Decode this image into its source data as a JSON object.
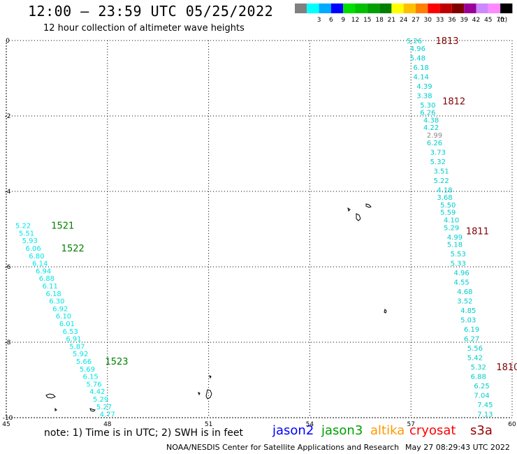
{
  "title": "12:00 – 23:59 UTC 05/25/2022",
  "subtitle": "12 hour collection of altimeter wave heights",
  "legend": {
    "unit": "(ft)",
    "bins": [
      {
        "label": "",
        "color": "#808080"
      },
      {
        "label": "3",
        "color": "#00ffff"
      },
      {
        "label": "6",
        "color": "#00aaff"
      },
      {
        "label": "9",
        "color": "#0000ff"
      },
      {
        "label": "12",
        "color": "#00dd00"
      },
      {
        "label": "15",
        "color": "#00c000"
      },
      {
        "label": "18",
        "color": "#00a000"
      },
      {
        "label": "21",
        "color": "#008000"
      },
      {
        "label": "24",
        "color": "#ffff00"
      },
      {
        "label": "27",
        "color": "#ffc000"
      },
      {
        "label": "30",
        "color": "#ff8000"
      },
      {
        "label": "33",
        "color": "#ff0000"
      },
      {
        "label": "36",
        "color": "#c00000"
      },
      {
        "label": "39",
        "color": "#800000"
      },
      {
        "label": "42",
        "color": "#990099"
      },
      {
        "label": "45",
        "color": "#cc88ff"
      },
      {
        "label": "70",
        "color": "#ff88ff"
      },
      {
        "label": "",
        "color": "#000000"
      }
    ]
  },
  "axes": {
    "x_ticks": [
      "45",
      "48",
      "51",
      "54",
      "57",
      "60"
    ],
    "x_values": [
      45,
      48,
      51,
      54,
      57,
      60
    ],
    "y_ticks": [
      "0",
      "-2",
      "-4",
      "-6",
      "-8",
      "-10"
    ],
    "y_values": [
      0,
      -2,
      -4,
      -6,
      -8,
      -10
    ],
    "xlim": [
      45,
      60
    ],
    "ylim": [
      -10,
      0
    ],
    "grid": true
  },
  "tracks": [
    {
      "satellite": "jason3",
      "color": "#00e5e5",
      "label_color": "#008000",
      "points": [
        {
          "lon": 45.5,
          "lat": -4.9,
          "v": "5.22"
        },
        {
          "lon": 45.6,
          "lat": -5.1,
          "v": "5.51"
        },
        {
          "lon": 45.7,
          "lat": -5.3,
          "v": "5.93"
        },
        {
          "lon": 45.8,
          "lat": -5.5,
          "v": "6.06"
        },
        {
          "lon": 45.9,
          "lat": -5.7,
          "v": "6.80"
        },
        {
          "lon": 46.0,
          "lat": -5.9,
          "v": "6.14"
        },
        {
          "lon": 46.1,
          "lat": -6.1,
          "v": "6.94"
        },
        {
          "lon": 46.2,
          "lat": -6.3,
          "v": "6.88"
        },
        {
          "lon": 46.3,
          "lat": -6.5,
          "v": "6.11"
        },
        {
          "lon": 46.4,
          "lat": -6.7,
          "v": "6.18"
        },
        {
          "lon": 46.5,
          "lat": -6.9,
          "v": "6.30"
        },
        {
          "lon": 46.6,
          "lat": -7.1,
          "v": "6.92"
        },
        {
          "lon": 46.7,
          "lat": -7.3,
          "v": "6.10"
        },
        {
          "lon": 46.8,
          "lat": -7.5,
          "v": "6.01"
        },
        {
          "lon": 46.9,
          "lat": -7.7,
          "v": "6.53"
        },
        {
          "lon": 47.0,
          "lat": -7.9,
          "v": "6.91"
        },
        {
          "lon": 47.1,
          "lat": -8.1,
          "v": "5.87"
        },
        {
          "lon": 47.2,
          "lat": -8.3,
          "v": "5.92"
        },
        {
          "lon": 47.3,
          "lat": -8.5,
          "v": "5.66"
        },
        {
          "lon": 47.4,
          "lat": -8.7,
          "v": "5.69"
        },
        {
          "lon": 47.5,
          "lat": -8.9,
          "v": "6.15"
        },
        {
          "lon": 47.6,
          "lat": -9.1,
          "v": "5.76"
        },
        {
          "lon": 47.7,
          "lat": -9.3,
          "v": "4.42"
        },
        {
          "lon": 47.8,
          "lat": -9.5,
          "v": "5.29"
        },
        {
          "lon": 47.9,
          "lat": -9.7,
          "v": "5.27"
        },
        {
          "lon": 48.0,
          "lat": -9.9,
          "v": "4.77"
        }
      ],
      "time_labels": [
        {
          "lon": 46.3,
          "lat": -4.9,
          "text": "1521"
        },
        {
          "lon": 46.6,
          "lat": -5.5,
          "text": "1522"
        },
        {
          "lon": 47.9,
          "lat": -8.5,
          "text": "1523"
        }
      ]
    },
    {
      "satellite": "s3a",
      "color": "#00cccc",
      "label_color": "#800000",
      "points": [
        {
          "lon": 57.1,
          "lat": 0.0,
          "v": "5.26"
        },
        {
          "lon": 57.2,
          "lat": -0.2,
          "v": "4.96"
        },
        {
          "lon": 57.2,
          "lat": -0.45,
          "v": "5.48"
        },
        {
          "lon": 57.3,
          "lat": -0.7,
          "v": "6.18"
        },
        {
          "lon": 57.3,
          "lat": -0.95,
          "v": "4.14"
        },
        {
          "lon": 57.4,
          "lat": -1.2,
          "v": "4.39"
        },
        {
          "lon": 57.4,
          "lat": -1.45,
          "v": "3.38"
        },
        {
          "lon": 57.5,
          "lat": -1.7,
          "v": "5.30"
        },
        {
          "lon": 57.5,
          "lat": -1.9,
          "v": "6.26"
        },
        {
          "lon": 57.6,
          "lat": -2.1,
          "v": "4.38"
        },
        {
          "lon": 57.6,
          "lat": -2.3,
          "v": "4.22"
        },
        {
          "lon": 57.7,
          "lat": -2.5,
          "v": "2.99",
          "color": "#888888"
        },
        {
          "lon": 57.7,
          "lat": -2.7,
          "v": "6.26"
        },
        {
          "lon": 57.8,
          "lat": -2.95,
          "v": "3.73"
        },
        {
          "lon": 57.8,
          "lat": -3.2,
          "v": "5.32"
        },
        {
          "lon": 57.9,
          "lat": -3.45,
          "v": "3.51"
        },
        {
          "lon": 57.9,
          "lat": -3.7,
          "v": "5.22"
        },
        {
          "lon": 58.0,
          "lat": -3.95,
          "v": "4.18"
        },
        {
          "lon": 58.0,
          "lat": -4.15,
          "v": "3.68"
        },
        {
          "lon": 58.1,
          "lat": -4.35,
          "v": "5.50"
        },
        {
          "lon": 58.1,
          "lat": -4.55,
          "v": "5.59"
        },
        {
          "lon": 58.2,
          "lat": -4.75,
          "v": "4.10"
        },
        {
          "lon": 58.2,
          "lat": -4.95,
          "v": "5.29"
        },
        {
          "lon": 58.3,
          "lat": -5.2,
          "v": "4.99"
        },
        {
          "lon": 58.3,
          "lat": -5.4,
          "v": "5.18"
        },
        {
          "lon": 58.4,
          "lat": -5.65,
          "v": "5.53"
        },
        {
          "lon": 58.4,
          "lat": -5.9,
          "v": "5.33"
        },
        {
          "lon": 58.5,
          "lat": -6.15,
          "v": "4.96"
        },
        {
          "lon": 58.5,
          "lat": -6.4,
          "v": "4.55"
        },
        {
          "lon": 58.6,
          "lat": -6.65,
          "v": "4.68"
        },
        {
          "lon": 58.6,
          "lat": -6.9,
          "v": "3.52"
        },
        {
          "lon": 58.7,
          "lat": -7.15,
          "v": "4.85"
        },
        {
          "lon": 58.7,
          "lat": -7.4,
          "v": "5.03"
        },
        {
          "lon": 58.8,
          "lat": -7.65,
          "v": "6.19"
        },
        {
          "lon": 58.8,
          "lat": -7.9,
          "v": "6.27"
        },
        {
          "lon": 58.9,
          "lat": -8.15,
          "v": "5.56"
        },
        {
          "lon": 58.9,
          "lat": -8.4,
          "v": "5.42"
        },
        {
          "lon": 59.0,
          "lat": -8.65,
          "v": "5.32"
        },
        {
          "lon": 59.0,
          "lat": -8.9,
          "v": "6.88"
        },
        {
          "lon": 59.1,
          "lat": -9.15,
          "v": "6.25"
        },
        {
          "lon": 59.1,
          "lat": -9.4,
          "v": "7.04"
        },
        {
          "lon": 59.2,
          "lat": -9.65,
          "v": "7.45"
        },
        {
          "lon": 59.2,
          "lat": -9.9,
          "v": "7.13"
        }
      ],
      "time_labels": [
        {
          "lon": 57.7,
          "lat": 0.0,
          "text": "1813"
        },
        {
          "lon": 57.9,
          "lat": -1.6,
          "text": "1812"
        },
        {
          "lon": 58.6,
          "lat": -5.05,
          "text": "1811"
        },
        {
          "lon": 59.5,
          "lat": -8.65,
          "text": "1810"
        }
      ]
    }
  ],
  "footer": {
    "note": "note:  1) Time is in UTC;  2) SWH is in feet",
    "satellites": [
      {
        "name": "jason2",
        "color": "#0000ff"
      },
      {
        "name": "jason3",
        "color": "#00a000"
      },
      {
        "name": "altika",
        "color": "#ff9900"
      },
      {
        "name": "cryosat",
        "color": "#ff0000"
      },
      {
        "name": "s3a",
        "color": "#990000"
      }
    ],
    "credit": "NOAA/NESDIS Center for Satellite Applications and Research",
    "timestamp": "May 27 08:29:43 UTC 2022"
  }
}
